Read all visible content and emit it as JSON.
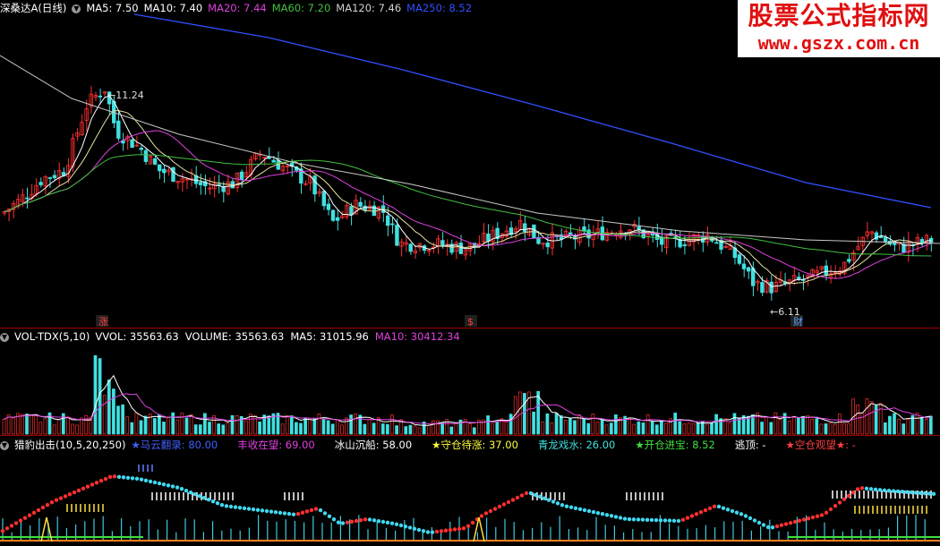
{
  "chart_data": [
    {
      "type": "candlestick",
      "panel": "price",
      "header": {
        "name": "深桑达A",
        "period": "(日线)",
        "items": [
          {
            "label": "MA5: 7.50",
            "color": "#ffffff"
          },
          {
            "label": "MA10: 7.40",
            "color": "#ffffff"
          },
          {
            "label": "MA20: 7.44",
            "color": "#e040e0"
          },
          {
            "label": "MA60: 7.20",
            "color": "#40c040"
          },
          {
            "label": "MA120: 7.46",
            "color": "#d0d0d0"
          },
          {
            "label": "MA250: 8.52",
            "color": "#3050ff"
          }
        ]
      },
      "high_label": "11.24",
      "low_label": "6.11",
      "markers": [
        {
          "text": "涨",
          "color": "#ff4040"
        },
        {
          "text": "$",
          "color": "#ff4040"
        },
        {
          "text": "财",
          "color": "#60a0ff"
        }
      ],
      "ylim": [
        5.6,
        12.6
      ]
    },
    {
      "type": "bar",
      "panel": "volume",
      "header": {
        "name": "VOL-TDX(5,10)",
        "items": [
          {
            "label": "VVOL: 35563.63",
            "color": "#ffffff"
          },
          {
            "label": "VOLUME: 35563.63",
            "color": "#ffffff"
          },
          {
            "label": "MA5: 31015.96",
            "color": "#ffffff"
          },
          {
            "label": "MA10: 30412.34",
            "color": "#e040e0"
          }
        ]
      }
    },
    {
      "type": "indicator",
      "panel": "hunter",
      "header": {
        "name": "猎豹出击(10,5,20,250)",
        "items": [
          {
            "label": "★马云翻录: 80.00",
            "color": "#4060ff"
          },
          {
            "label": "丰收在望: 69.00",
            "color": "#e040e0"
          },
          {
            "label": "冰山沉船: 58.00",
            "color": "#ffffff"
          },
          {
            "label": "★守仓待涨: 37.00",
            "color": "#ffff40"
          },
          {
            "label": "青龙戏水: 26.00",
            "color": "#40e0e0"
          },
          {
            "label": "★开仓进宝: 8.52",
            "color": "#40e040"
          },
          {
            "label": "逃顶: -",
            "color": "#ffffff"
          },
          {
            "label": "★空仓观望★: -",
            "color": "#ff4040"
          }
        ]
      }
    }
  ],
  "watermark": {
    "line1": "股票公式指标网",
    "line2": "www.gszx.com.cn"
  }
}
